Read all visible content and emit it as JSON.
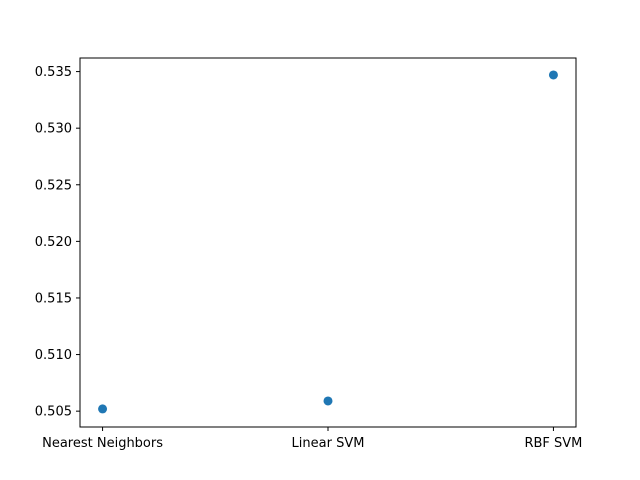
{
  "chart_data": {
    "type": "scatter",
    "title": "",
    "xlabel": "",
    "ylabel": "",
    "categories": [
      "Nearest Neighbors",
      "Linear SVM",
      "RBF SVM"
    ],
    "series": [
      {
        "values": [
          0.5052,
          0.5059,
          0.5347
        ]
      }
    ],
    "yticks": [
      "0.505",
      "0.510",
      "0.515",
      "0.520",
      "0.525",
      "0.530",
      "0.535"
    ],
    "ylim": [
      0.5036,
      0.5362
    ],
    "grid": false,
    "legend": "none",
    "colors": {
      "marker": "#1f77b4",
      "axes": "#000000",
      "background": "#ffffff"
    }
  }
}
